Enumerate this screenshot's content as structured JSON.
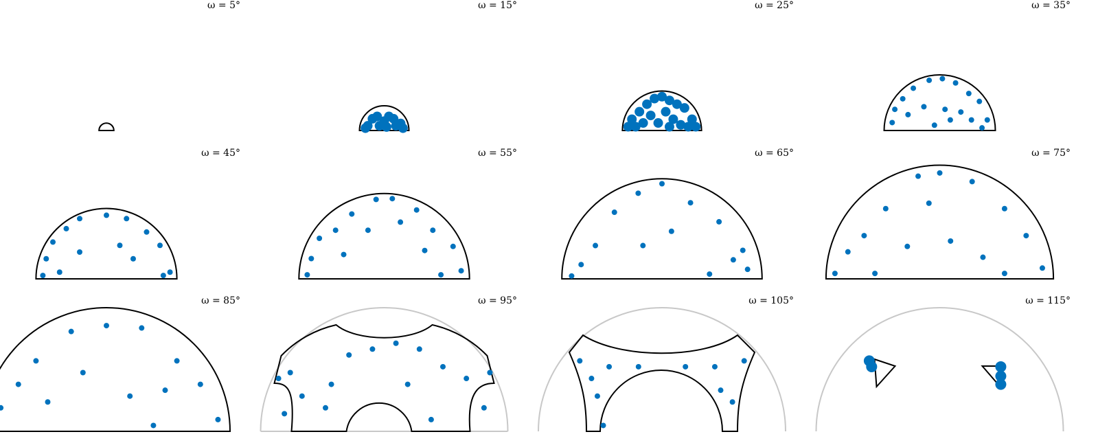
{
  "figure": {
    "panel_titles": [
      "ω = 5°",
      "ω = 15°",
      "ω = 25°",
      "ω = 35°",
      "ω = 45°",
      "ω = 55°",
      "ω = 65°",
      "ω = 75°",
      "ω = 85°",
      "ω = 95°",
      "ω = 105°",
      "ω = 115°"
    ]
  },
  "colors": {
    "points": "#0072BD",
    "boundary": "#000000",
    "reference": "#c8c8c8"
  },
  "chart_data": {
    "type": "scatter",
    "description_of_axes": "none shown",
    "panels": [
      {
        "omega": 5,
        "boundary": "half-disk",
        "radius_fraction": 0.06,
        "points": []
      },
      {
        "omega": 15,
        "boundary": "half-disk",
        "radius_fraction": 0.2,
        "points": [
          [
            -0.7,
            0.2
          ],
          [
            -0.5,
            0.5
          ],
          [
            -0.3,
            0.6
          ],
          [
            0.0,
            0.4
          ],
          [
            0.2,
            0.6
          ],
          [
            0.4,
            0.5
          ],
          [
            0.7,
            0.3
          ],
          [
            0.8,
            0.1
          ],
          [
            -0.8,
            0.1
          ],
          [
            0.5,
            0.2
          ],
          [
            -0.2,
            0.2
          ],
          [
            0.1,
            0.15
          ]
        ]
      },
      {
        "omega": 25,
        "boundary": "half-disk",
        "radius_fraction": 0.32,
        "points": [
          [
            -0.9,
            0.1
          ],
          [
            -0.8,
            0.3
          ],
          [
            -0.6,
            0.5
          ],
          [
            -0.4,
            0.7
          ],
          [
            -0.2,
            0.85
          ],
          [
            0.0,
            0.9
          ],
          [
            0.2,
            0.8
          ],
          [
            0.4,
            0.7
          ],
          [
            0.6,
            0.6
          ],
          [
            0.8,
            0.3
          ],
          [
            0.9,
            0.1
          ],
          [
            -0.5,
            0.2
          ],
          [
            -0.3,
            0.4
          ],
          [
            0.1,
            0.5
          ],
          [
            0.3,
            0.3
          ],
          [
            0.5,
            0.15
          ],
          [
            -0.1,
            0.2
          ],
          [
            0.7,
            0.1
          ],
          [
            -0.7,
            0.1
          ],
          [
            0.2,
            0.1
          ]
        ]
      },
      {
        "omega": 35,
        "boundary": "half-disk",
        "radius_fraction": 0.45,
        "points": [
          [
            -0.9,
            0.15
          ],
          [
            -0.85,
            0.4
          ],
          [
            -0.7,
            0.6
          ],
          [
            -0.5,
            0.8
          ],
          [
            -0.2,
            0.95
          ],
          [
            0.05,
            0.98
          ],
          [
            0.3,
            0.9
          ],
          [
            0.55,
            0.7
          ],
          [
            0.75,
            0.55
          ],
          [
            0.9,
            0.2
          ],
          [
            -0.6,
            0.3
          ],
          [
            -0.3,
            0.45
          ],
          [
            0.1,
            0.4
          ],
          [
            0.4,
            0.35
          ],
          [
            0.6,
            0.2
          ],
          [
            -0.1,
            0.1
          ],
          [
            0.2,
            0.2
          ],
          [
            0.8,
            0.05
          ]
        ]
      },
      {
        "omega": 45,
        "boundary": "half-disk",
        "radius_fraction": 0.57,
        "points": [
          [
            -0.95,
            0.05
          ],
          [
            -0.9,
            0.3
          ],
          [
            -0.8,
            0.55
          ],
          [
            -0.6,
            0.75
          ],
          [
            -0.4,
            0.9
          ],
          [
            0.0,
            0.95
          ],
          [
            0.3,
            0.9
          ],
          [
            0.6,
            0.7
          ],
          [
            0.8,
            0.5
          ],
          [
            0.95,
            0.1
          ],
          [
            -0.4,
            0.4
          ],
          [
            0.2,
            0.5
          ],
          [
            0.4,
            0.3
          ],
          [
            -0.7,
            0.1
          ],
          [
            0.85,
            0.05
          ]
        ]
      },
      {
        "omega": 55,
        "boundary": "half-disk",
        "radius_fraction": 0.69,
        "points": [
          [
            -0.95,
            0.05
          ],
          [
            -0.9,
            0.25
          ],
          [
            -0.8,
            0.5
          ],
          [
            -0.6,
            0.6
          ],
          [
            -0.4,
            0.8
          ],
          [
            -0.1,
            0.98
          ],
          [
            0.1,
            0.99
          ],
          [
            0.4,
            0.85
          ],
          [
            0.6,
            0.6
          ],
          [
            0.85,
            0.4
          ],
          [
            0.95,
            0.1
          ],
          [
            -0.5,
            0.3
          ],
          [
            0.5,
            0.35
          ],
          [
            -0.2,
            0.6
          ],
          [
            0.2,
            0.7
          ],
          [
            0.7,
            0.05
          ]
        ]
      },
      {
        "omega": 65,
        "boundary": "half-disk",
        "radius_fraction": 0.81,
        "points": [
          [
            -0.95,
            0.03
          ],
          [
            -0.85,
            0.15
          ],
          [
            -0.7,
            0.35
          ],
          [
            -0.5,
            0.7
          ],
          [
            -0.25,
            0.9
          ],
          [
            0.0,
            1.0
          ],
          [
            0.3,
            0.8
          ],
          [
            0.6,
            0.6
          ],
          [
            0.85,
            0.3
          ],
          [
            0.9,
            0.1
          ],
          [
            -0.2,
            0.35
          ],
          [
            0.1,
            0.5
          ],
          [
            0.5,
            0.05
          ],
          [
            0.75,
            0.2
          ]
        ]
      },
      {
        "omega": 75,
        "boundary": "half-disk",
        "radius_fraction": 0.92,
        "points": [
          [
            -0.97,
            0.05
          ],
          [
            -0.85,
            0.25
          ],
          [
            -0.7,
            0.4
          ],
          [
            -0.5,
            0.65
          ],
          [
            -0.2,
            0.95
          ],
          [
            0.0,
            0.98
          ],
          [
            0.3,
            0.9
          ],
          [
            0.6,
            0.65
          ],
          [
            0.8,
            0.4
          ],
          [
            0.95,
            0.1
          ],
          [
            -0.3,
            0.3
          ],
          [
            0.1,
            0.35
          ],
          [
            0.4,
            0.2
          ],
          [
            -0.6,
            0.05
          ],
          [
            0.6,
            0.05
          ],
          [
            -0.1,
            0.7
          ]
        ]
      },
      {
        "omega": 85,
        "boundary": "half-disk",
        "radius_fraction": 1.0,
        "points": [
          [
            -0.98,
            0.05
          ],
          [
            -0.9,
            0.2
          ],
          [
            -0.75,
            0.4
          ],
          [
            -0.6,
            0.6
          ],
          [
            -0.3,
            0.85
          ],
          [
            0.0,
            0.9
          ],
          [
            0.3,
            0.88
          ],
          [
            0.6,
            0.6
          ],
          [
            0.8,
            0.4
          ],
          [
            0.95,
            0.1
          ],
          [
            -0.5,
            0.25
          ],
          [
            0.2,
            0.3
          ],
          [
            0.4,
            0.05
          ],
          [
            -0.2,
            0.5
          ],
          [
            0.5,
            0.35
          ]
        ]
      },
      {
        "omega": 95,
        "boundary": "domed-arch",
        "points": [
          [
            -0.9,
            0.45
          ],
          [
            -0.8,
            0.5
          ],
          [
            -0.7,
            0.3
          ],
          [
            -0.5,
            0.2
          ],
          [
            -0.3,
            0.65
          ],
          [
            -0.1,
            0.7
          ],
          [
            0.1,
            0.75
          ],
          [
            0.3,
            0.7
          ],
          [
            0.5,
            0.55
          ],
          [
            0.7,
            0.45
          ],
          [
            0.9,
            0.5
          ],
          [
            0.85,
            0.2
          ],
          [
            -0.85,
            0.15
          ],
          [
            0.4,
            0.1
          ],
          [
            -0.45,
            0.4
          ],
          [
            0.2,
            0.4
          ]
        ]
      },
      {
        "omega": 105,
        "boundary": "notched-band",
        "points": [
          [
            -0.7,
            0.6
          ],
          [
            -0.6,
            0.45
          ],
          [
            -0.55,
            0.3
          ],
          [
            -0.45,
            0.55
          ],
          [
            0.45,
            0.55
          ],
          [
            0.5,
            0.35
          ],
          [
            0.6,
            0.25
          ],
          [
            0.7,
            0.6
          ],
          [
            -0.2,
            0.55
          ],
          [
            0.2,
            0.55
          ],
          [
            -0.5,
            0.05
          ]
        ]
      },
      {
        "omega": 115,
        "boundary": "two-triangles",
        "points": [
          [
            -0.58,
            0.55
          ],
          [
            0.52,
            0.55
          ],
          [
            0.52,
            0.47
          ],
          [
            0.52,
            0.4
          ],
          [
            -0.6,
            0.6
          ]
        ]
      }
    ]
  }
}
